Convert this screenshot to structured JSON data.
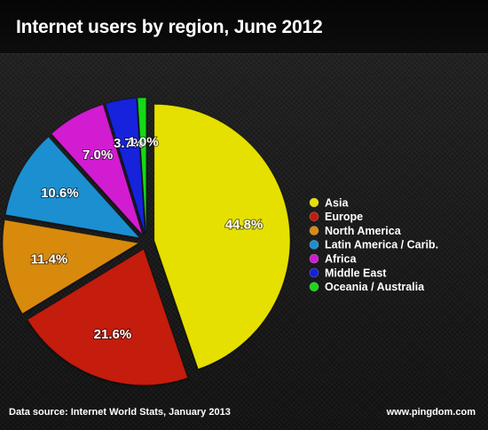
{
  "chart_data": {
    "type": "pie",
    "title": "Internet users by region, June 2012",
    "categories": [
      "Asia",
      "Europe",
      "North America",
      "Latin America / Carib.",
      "Africa",
      "Middle East",
      "Oceania / Australia"
    ],
    "values": [
      44.8,
      21.6,
      11.4,
      10.6,
      7.0,
      3.7,
      1.0
    ],
    "labels": [
      "44.8%",
      "21.6%",
      "11.4%",
      "10.6%",
      "7.0%",
      "3.7%",
      "1.0%"
    ],
    "colors": [
      "#e6e000",
      "#c41a0c",
      "#d88a10",
      "#1c8fd0",
      "#d21ad2",
      "#1420dc",
      "#18d818"
    ],
    "legend": {
      "position": "right",
      "items": [
        "Asia",
        "Europe",
        "North America",
        "Latin America / Carib.",
        "Africa",
        "Middle East",
        "Oceania / Australia"
      ]
    },
    "exploded": true
  },
  "footer": {
    "source": "Data source: Internet World Stats, January 2013",
    "credit": "www.pingdom.com"
  }
}
